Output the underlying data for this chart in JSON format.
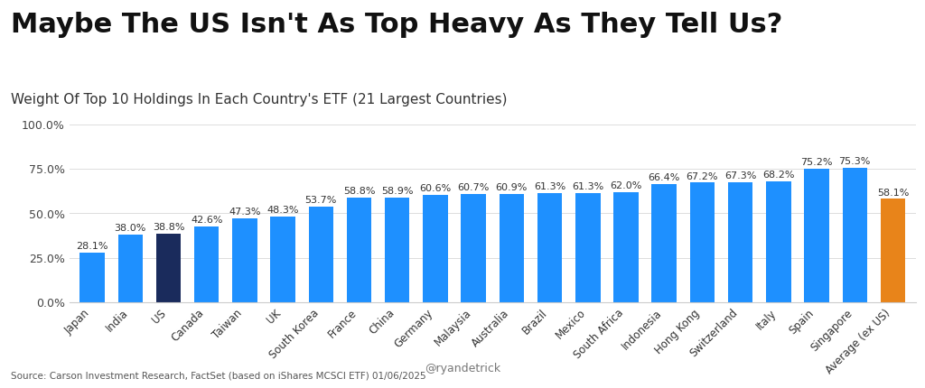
{
  "title": "Maybe The US Isn't As Top Heavy As They Tell Us?",
  "subtitle": "Weight Of Top 10 Holdings In Each Country's ETF (21 Largest Countries)",
  "categories": [
    "Japan",
    "India",
    "US",
    "Canada",
    "Taiwan",
    "UK",
    "South Korea",
    "France",
    "China",
    "Germany",
    "Malaysia",
    "Australia",
    "Brazil",
    "Mexico",
    "South Africa",
    "Indonesia",
    "Hong Kong",
    "Switzerland",
    "Italy",
    "Spain",
    "Singapore",
    "Average (ex US)"
  ],
  "values": [
    28.1,
    38.0,
    38.8,
    42.6,
    47.3,
    48.3,
    53.7,
    58.8,
    58.9,
    60.6,
    60.7,
    60.9,
    61.3,
    61.3,
    62.0,
    66.4,
    67.2,
    67.3,
    68.2,
    75.2,
    75.3,
    58.1
  ],
  "bar_colors": [
    "#1E90FF",
    "#1E90FF",
    "#1A2B5C",
    "#1E90FF",
    "#1E90FF",
    "#1E90FF",
    "#1E90FF",
    "#1E90FF",
    "#1E90FF",
    "#1E90FF",
    "#1E90FF",
    "#1E90FF",
    "#1E90FF",
    "#1E90FF",
    "#1E90FF",
    "#1E90FF",
    "#1E90FF",
    "#1E90FF",
    "#1E90FF",
    "#1E90FF",
    "#1E90FF",
    "#E8841A"
  ],
  "ylim": [
    0,
    100
  ],
  "yticks": [
    0,
    25,
    50,
    75,
    100
  ],
  "ytick_labels": [
    "0.0%",
    "25.0%",
    "50.0%",
    "75.0%",
    "100.0%"
  ],
  "source_text": "Source: Carson Investment Research, FactSet (based on iShares MCSCI ETF) 01/06/2025",
  "handle_text": "@ryandetrick",
  "background_color": "#FFFFFF",
  "title_fontsize": 22,
  "subtitle_fontsize": 11,
  "label_fontsize": 8.5,
  "value_label_fontsize": 8
}
